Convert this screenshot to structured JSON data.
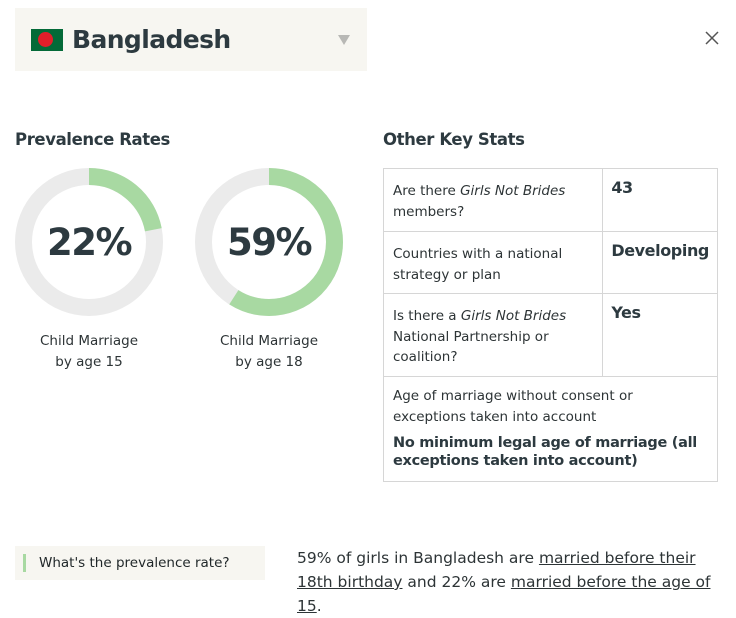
{
  "country": {
    "name": "Bangladesh",
    "flag_icon": "bangladesh-flag-icon"
  },
  "colors": {
    "accent_green": "#a8d9a2",
    "ring_track": "#ebebeb",
    "panel_bg": "#f7f6f1"
  },
  "prevalence": {
    "title": "Prevalence Rates",
    "rings": [
      {
        "value_label": "22%",
        "fraction": 0.22,
        "label_line1": "Child Marriage",
        "label_line2": "by age 15"
      },
      {
        "value_label": "59%",
        "fraction": 0.59,
        "label_line1": "Child Marriage",
        "label_line2": "by age 18"
      }
    ]
  },
  "other_stats": {
    "title": "Other Key Stats",
    "rows": [
      {
        "q_pre": "Are there ",
        "q_em": "Girls Not Brides",
        "q_post": " members?",
        "answer": "43"
      },
      {
        "q": "Countries with a national strategy or plan",
        "answer": "Developing"
      },
      {
        "q_pre": "Is there a ",
        "q_em": "Girls Not Brides",
        "q_post": " National Partnership or coalition?",
        "answer": "Yes"
      },
      {
        "q": "Age of marriage without consent or exceptions taken into account",
        "answer": "No minimum legal age of marriage (all exceptions taken into account)"
      }
    ]
  },
  "faq": {
    "tab_label": "What's the prevalence rate?",
    "answer_part1": "59% of girls in Bangladesh are ",
    "answer_link1": "married before their 18th birthday",
    "answer_part2": " and 22% are ",
    "answer_link2": "married before the age of 15",
    "answer_part3": "."
  }
}
